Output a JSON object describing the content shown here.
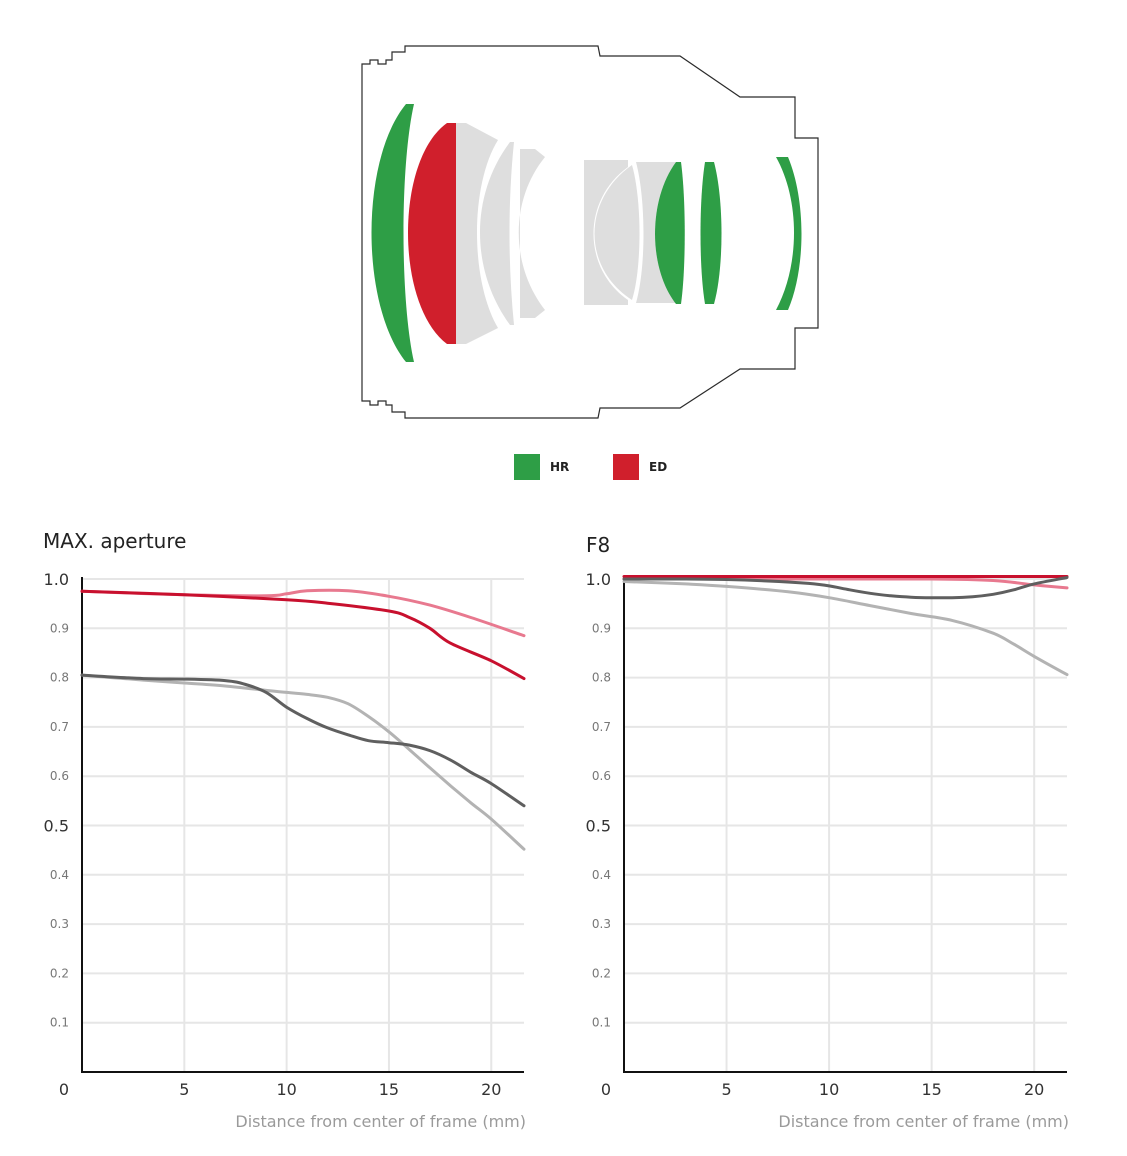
{
  "legend": [
    {
      "label": "HR",
      "color": "#2e9e46"
    },
    {
      "label": "ED",
      "color": "#d01f2c"
    }
  ],
  "chart_data": [
    {
      "type": "line",
      "title": "MAX. aperture",
      "xlabel": "Distance from center of frame (mm)",
      "ylabel": "",
      "xlim": [
        0,
        21.6
      ],
      "ylim": [
        0,
        1.0
      ],
      "xticks": [
        "0",
        "5",
        "10",
        "15",
        "20"
      ],
      "yticks": [
        "0.1",
        "0.2",
        "0.3",
        "0.4",
        "0.5",
        "0.6",
        "0.7",
        "0.8",
        "0.9",
        "1.0"
      ],
      "grid": true,
      "series": [
        {
          "color": "#e8798f",
          "x": [
            0,
            5,
            9,
            10,
            11,
            13,
            15,
            17,
            19,
            21.6
          ],
          "y": [
            0.975,
            0.968,
            0.966,
            0.97,
            0.976,
            0.976,
            0.965,
            0.947,
            0.922,
            0.885
          ]
        },
        {
          "color": "#c8102e",
          "x": [
            0,
            5,
            10,
            12,
            15,
            16,
            17,
            18,
            20,
            21.6
          ],
          "y": [
            0.975,
            0.968,
            0.958,
            0.951,
            0.935,
            0.922,
            0.9,
            0.87,
            0.834,
            0.798
          ]
        },
        {
          "color": "#b3b3b3",
          "x": [
            0,
            3,
            5,
            7,
            9,
            10,
            11,
            12,
            13,
            14,
            15,
            16,
            17,
            18,
            19,
            20,
            21.6
          ],
          "y": [
            0.805,
            0.795,
            0.789,
            0.783,
            0.774,
            0.77,
            0.766,
            0.76,
            0.747,
            0.721,
            0.69,
            0.654,
            0.617,
            0.581,
            0.546,
            0.513,
            0.452
          ]
        },
        {
          "color": "#5f5f5f",
          "x": [
            0,
            3,
            5,
            7,
            8,
            9,
            10,
            11,
            12,
            13,
            14,
            15,
            16,
            17,
            18,
            19,
            20,
            21.6
          ],
          "y": [
            0.805,
            0.798,
            0.797,
            0.794,
            0.786,
            0.77,
            0.74,
            0.717,
            0.698,
            0.684,
            0.672,
            0.668,
            0.663,
            0.652,
            0.633,
            0.608,
            0.585,
            0.54
          ]
        }
      ]
    },
    {
      "type": "line",
      "title": "F8",
      "xlabel": "Distance from center of frame (mm)",
      "ylabel": "",
      "xlim": [
        0,
        21.6
      ],
      "ylim": [
        0,
        1.0
      ],
      "xticks": [
        "0",
        "5",
        "10",
        "15",
        "20"
      ],
      "yticks": [
        "0.1",
        "0.2",
        "0.3",
        "0.4",
        "0.5",
        "0.6",
        "0.7",
        "0.8",
        "0.9",
        "1.0"
      ],
      "grid": true,
      "series": [
        {
          "color": "#e8798f",
          "x": [
            0,
            5,
            10,
            15,
            18,
            20,
            21.6
          ],
          "y": [
            1.0,
            1.0,
            1.0,
            1.0,
            0.997,
            0.988,
            0.982
          ]
        },
        {
          "color": "#c8102e",
          "x": [
            0,
            5,
            10,
            15,
            20,
            21.6
          ],
          "y": [
            1.005,
            1.005,
            1.005,
            1.005,
            1.005,
            1.005
          ]
        },
        {
          "color": "#b3b3b3",
          "x": [
            0,
            3,
            5,
            8,
            10,
            12,
            14,
            16,
            18,
            19,
            20,
            21.6
          ],
          "y": [
            0.995,
            0.99,
            0.985,
            0.974,
            0.962,
            0.946,
            0.93,
            0.916,
            0.89,
            0.868,
            0.843,
            0.806
          ]
        },
        {
          "color": "#5f5f5f",
          "x": [
            0,
            3,
            5,
            7,
            9,
            10,
            11,
            12,
            13,
            14,
            15,
            16,
            17,
            18,
            19,
            20,
            21.6
          ],
          "y": [
            1.0,
            1.0,
            0.999,
            0.996,
            0.991,
            0.986,
            0.978,
            0.971,
            0.966,
            0.963,
            0.962,
            0.962,
            0.964,
            0.969,
            0.978,
            0.99,
            1.003
          ]
        }
      ]
    }
  ]
}
